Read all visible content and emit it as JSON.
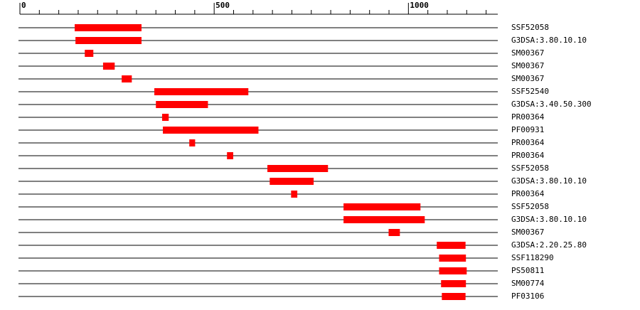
{
  "chart_data": {
    "type": "range",
    "xlim": [
      0,
      1230
    ],
    "xticks": [
      0,
      500,
      1000
    ],
    "minor_xticks": [
      50,
      100,
      150,
      200,
      250,
      300,
      350,
      400,
      450,
      550,
      600,
      650,
      700,
      750,
      800,
      850,
      900,
      950,
      1050,
      1100,
      1150,
      1200
    ],
    "color": "#ff0000",
    "categories": [
      "SSF52058",
      "G3DSA:3.80.10.10",
      "SM00367",
      "SM00367",
      "SM00367",
      "SSF52540",
      "G3DSA:3.40.50.300",
      "PR00364",
      "PF00931",
      "PR00364",
      "PR00364",
      "SSF52058",
      "G3DSA:3.80.10.10",
      "PR00364",
      "SSF52058",
      "G3DSA:3.80.10.10",
      "SM00367",
      "G3DSA:2.20.25.80",
      "SSF118290",
      "PS50811",
      "SM00774",
      "PF03106"
    ],
    "start": [
      141,
      143,
      167,
      214,
      262,
      346,
      350,
      366,
      368,
      436,
      533,
      637,
      643,
      698,
      833,
      833,
      949,
      1073,
      1079,
      1079,
      1084,
      1086
    ],
    "end": [
      313,
      313,
      189,
      244,
      288,
      588,
      484,
      383,
      614,
      451,
      549,
      793,
      756,
      714,
      1031,
      1042,
      978,
      1147,
      1148,
      1150,
      1148,
      1147
    ]
  }
}
